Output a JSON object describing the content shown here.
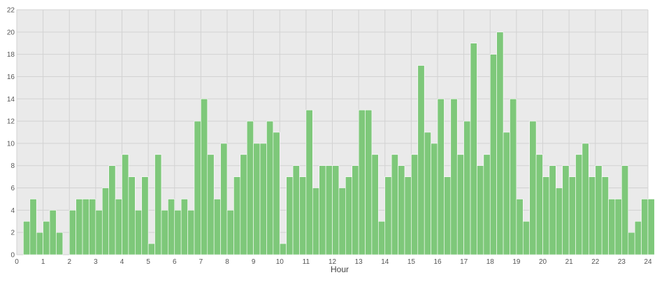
{
  "chart_data": {
    "type": "bar",
    "xlabel": "Hour",
    "ylabel": "",
    "xlim": [
      0,
      24
    ],
    "ylim": [
      0,
      22
    ],
    "x_ticks": [
      0,
      1,
      2,
      3,
      4,
      5,
      6,
      7,
      8,
      9,
      10,
      11,
      12,
      13,
      14,
      15,
      16,
      17,
      18,
      19,
      20,
      21,
      22,
      23,
      24
    ],
    "y_ticks": [
      0,
      2,
      4,
      6,
      8,
      10,
      12,
      14,
      16,
      18,
      20,
      22
    ],
    "grid": true,
    "bin_width": 0.25,
    "bin_start": 0.25,
    "values": [
      3,
      5,
      2,
      3,
      4,
      2,
      0,
      4,
      5,
      5,
      5,
      4,
      6,
      8,
      5,
      9,
      7,
      4,
      7,
      1,
      9,
      4,
      5,
      4,
      5,
      4,
      12,
      14,
      9,
      5,
      10,
      4,
      7,
      9,
      12,
      10,
      10,
      12,
      11,
      1,
      7,
      8,
      7,
      13,
      6,
      8,
      8,
      8,
      6,
      7,
      8,
      13,
      13,
      9,
      3,
      7,
      9,
      8,
      7,
      9,
      17,
      11,
      10,
      14,
      7,
      14,
      9,
      12,
      19,
      8,
      9,
      18,
      20,
      11,
      14,
      5,
      3,
      12,
      9,
      7,
      8,
      6,
      8,
      7,
      9,
      10,
      7,
      8,
      7,
      5,
      5,
      8,
      2,
      3,
      5,
      5
    ]
  },
  "colors": {
    "bar_fill": "#7ec87a",
    "bar_edge": "#ffffff",
    "plot_bg": "#eaeaea",
    "grid": "#d2d2d2"
  }
}
